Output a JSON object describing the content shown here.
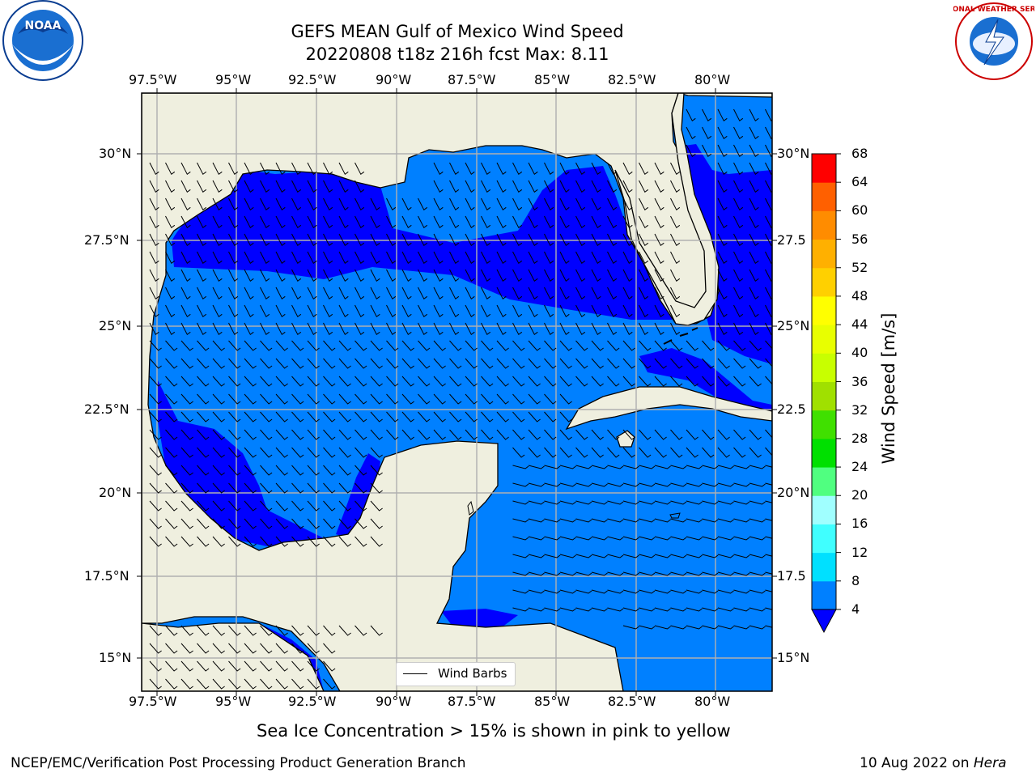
{
  "title": {
    "line1": "GEFS MEAN Gulf of Mexico Wind Speed",
    "line2": "20220808 t18z 216h fcst   Max: 8.11"
  },
  "map": {
    "lon_ticks": [
      "97.5°W",
      "95°W",
      "92.5°W",
      "90°W",
      "87.5°W",
      "85°W",
      "82.5°W",
      "80°W"
    ],
    "lat_ticks": [
      "30°N",
      "27.5°N",
      "25°N",
      "22.5°N",
      "20°N",
      "17.5°N",
      "15°N"
    ],
    "lat_ticks_right": [
      "30°N",
      "27.5",
      "25°N",
      "22.5",
      "20°N",
      "17.5",
      "15°N"
    ],
    "legend_label": "Wind Barbs",
    "land_color": "#efefdf",
    "ocean_fill_low": "#0080ff",
    "ocean_fill_high": "#0000ff"
  },
  "colorbar": {
    "label": "Wind Speed [m/s]",
    "ticks": [
      "4",
      "8",
      "12",
      "16",
      "20",
      "24",
      "28",
      "32",
      "36",
      "40",
      "44",
      "48",
      "52",
      "56",
      "60",
      "64",
      "68"
    ],
    "colors": [
      "#0080ff",
      "#00e0ff",
      "#40ffff",
      "#a0ffff",
      "#50ff80",
      "#00e000",
      "#40e000",
      "#a0e000",
      "#c8ff00",
      "#e8ff00",
      "#ffff00",
      "#ffd000",
      "#ffb000",
      "#ff8c00",
      "#ff6000",
      "#ff3000"
    ],
    "extend_color": "#0000ff",
    "top_color": "#ff0000"
  },
  "logos": {
    "noaa_text": "NOAA",
    "nws_text": "NATIONAL WEATHER SERVICE"
  },
  "notes": {
    "sea_ice": "Sea Ice Concentration > 15% is shown in pink to yellow"
  },
  "footer": {
    "left": "NCEP/EMC/Verification Post Processing Product Generation Branch",
    "date": "10 Aug 2022 on ",
    "machine": "Hera"
  }
}
